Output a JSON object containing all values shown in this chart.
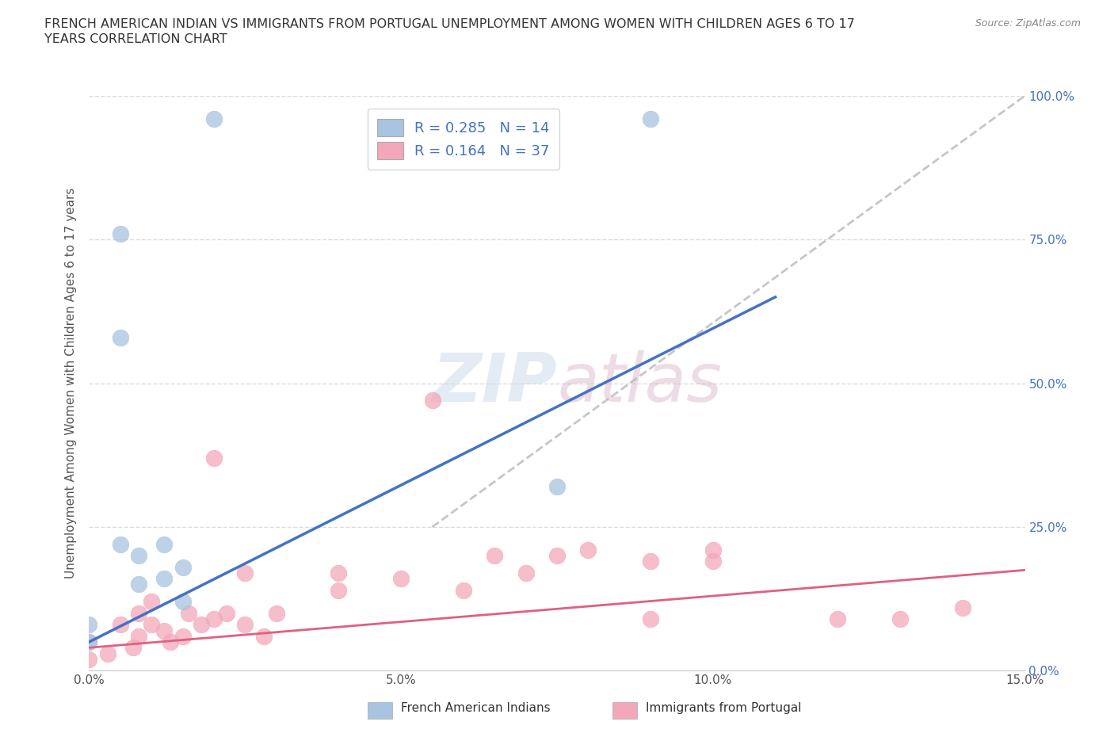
{
  "title_line1": "FRENCH AMERICAN INDIAN VS IMMIGRANTS FROM PORTUGAL UNEMPLOYMENT AMONG WOMEN WITH CHILDREN AGES 6 TO 17",
  "title_line2": "YEARS CORRELATION CHART",
  "source": "Source: ZipAtlas.com",
  "ylabel": "Unemployment Among Women with Children Ages 6 to 17 years",
  "xlim": [
    0.0,
    0.15
  ],
  "ylim": [
    0.0,
    1.0
  ],
  "xticks": [
    0.0,
    0.05,
    0.1,
    0.15
  ],
  "xticklabels": [
    "0.0%",
    "5.0%",
    "10.0%",
    "15.0%"
  ],
  "yticks": [
    0.0,
    0.25,
    0.5,
    0.75,
    1.0
  ],
  "yticklabels": [
    "0.0%",
    "25.0%",
    "50.0%",
    "75.0%",
    "100.0%"
  ],
  "legend_r1": "R = 0.285",
  "legend_n1": "N = 14",
  "legend_r2": "R = 0.164",
  "legend_n2": "N = 37",
  "blue_color": "#a8c4e0",
  "pink_color": "#f4a7b9",
  "blue_line_color": "#4472c4",
  "pink_line_color": "#e06080",
  "gray_line_color": "#b8b8b8",
  "tick_color": "#4472c4",
  "watermark_color": "#c8d8ea",
  "blue_scatter_x": [
    0.02,
    0.09,
    0.005,
    0.005,
    0.005,
    0.008,
    0.008,
    0.012,
    0.012,
    0.015,
    0.015,
    0.075,
    0.0,
    0.0
  ],
  "blue_scatter_y": [
    0.96,
    0.96,
    0.76,
    0.58,
    0.22,
    0.2,
    0.15,
    0.22,
    0.16,
    0.18,
    0.12,
    0.32,
    0.08,
    0.05
  ],
  "pink_scatter_x": [
    0.0,
    0.0,
    0.003,
    0.005,
    0.007,
    0.008,
    0.008,
    0.01,
    0.01,
    0.012,
    0.013,
    0.015,
    0.016,
    0.018,
    0.02,
    0.02,
    0.022,
    0.025,
    0.025,
    0.028,
    0.03,
    0.04,
    0.04,
    0.05,
    0.055,
    0.06,
    0.065,
    0.07,
    0.075,
    0.08,
    0.09,
    0.09,
    0.1,
    0.1,
    0.12,
    0.13,
    0.14
  ],
  "pink_scatter_y": [
    0.05,
    0.02,
    0.03,
    0.08,
    0.04,
    0.06,
    0.1,
    0.08,
    0.12,
    0.07,
    0.05,
    0.06,
    0.1,
    0.08,
    0.09,
    0.37,
    0.1,
    0.08,
    0.17,
    0.06,
    0.1,
    0.14,
    0.17,
    0.16,
    0.47,
    0.14,
    0.2,
    0.17,
    0.2,
    0.21,
    0.19,
    0.09,
    0.19,
    0.21,
    0.09,
    0.09,
    0.11
  ],
  "blue_trend_x": [
    0.0,
    0.11
  ],
  "blue_trend_y": [
    0.05,
    0.65
  ],
  "gray_trend_x": [
    0.055,
    0.15
  ],
  "gray_trend_y": [
    0.25,
    1.0
  ],
  "pink_trend_x": [
    0.0,
    0.15
  ],
  "pink_trend_y": [
    0.04,
    0.175
  ]
}
